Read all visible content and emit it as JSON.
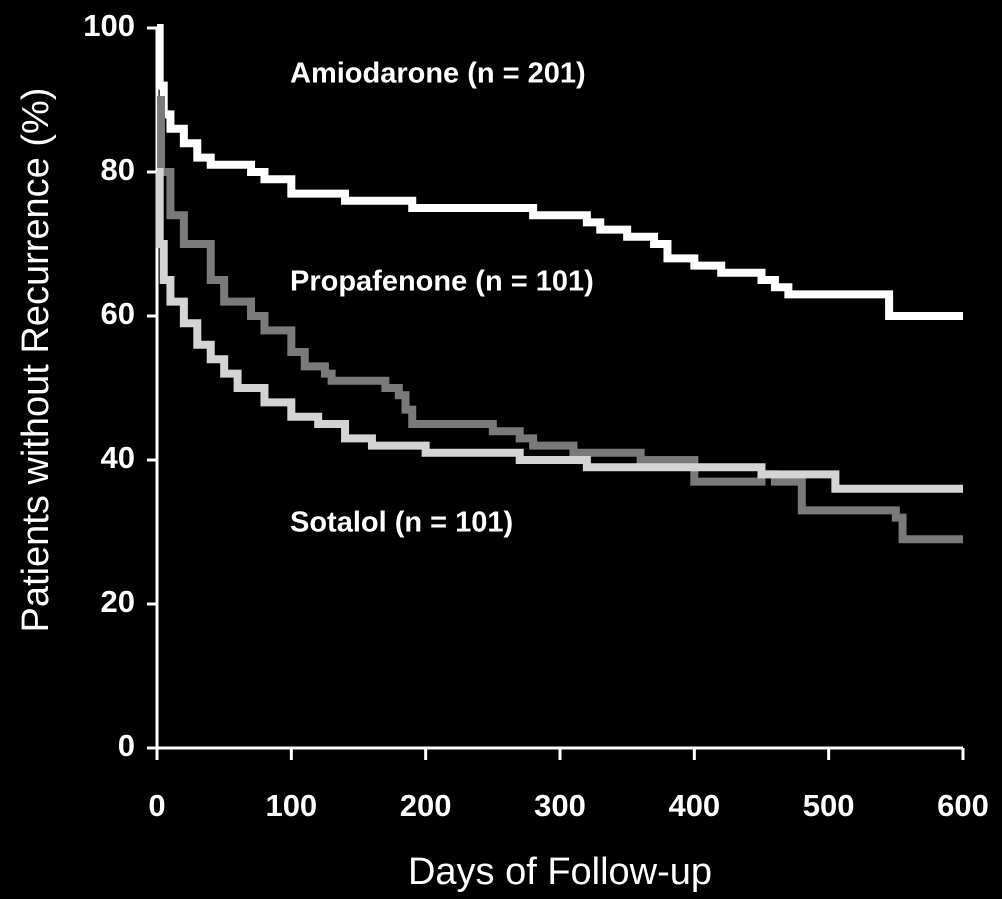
{
  "chart_data": {
    "type": "line",
    "step": true,
    "xlabel": "Days of Follow-up",
    "ylabel": "Patients without Recurrence (%)",
    "xlim": [
      0,
      600
    ],
    "xticks": [
      0,
      100,
      200,
      300,
      400,
      500,
      600
    ],
    "ylim": [
      0,
      100
    ],
    "yticks": [
      0,
      20,
      40,
      60,
      80,
      100
    ],
    "series": [
      {
        "name": "Amiodarone (n = 201)",
        "color": "#ffffff",
        "x": [
          0,
          2,
          5,
          10,
          20,
          30,
          40,
          60,
          70,
          80,
          100,
          130,
          140,
          190,
          270,
          280,
          310,
          320,
          330,
          350,
          370,
          380,
          400,
          420,
          450,
          460,
          470,
          545,
          600
        ],
        "values": [
          100,
          92,
          88,
          86,
          84,
          82,
          81,
          81,
          80,
          79,
          77,
          77,
          76,
          75,
          75,
          74,
          74,
          73,
          72,
          71,
          70,
          68,
          67,
          66,
          65,
          64,
          63,
          60,
          60
        ]
      },
      {
        "name": "Propafenone (n = 101)",
        "color": "#7a7a7a",
        "x": [
          0,
          3,
          10,
          20,
          40,
          50,
          70,
          80,
          100,
          110,
          125,
          130,
          170,
          180,
          185,
          190,
          250,
          270,
          280,
          310,
          360,
          400,
          450,
          460,
          480,
          550,
          555,
          600
        ],
        "values": [
          90,
          80,
          74,
          70,
          65,
          62,
          60,
          58,
          55,
          53,
          52,
          51,
          50,
          49,
          47,
          45,
          44,
          43,
          42,
          41,
          40,
          37,
          38,
          37,
          33,
          32,
          29,
          29
        ]
      },
      {
        "name": "Sotalol (n = 101)",
        "color": "#d4d4d4",
        "x": [
          0,
          2,
          5,
          10,
          20,
          30,
          40,
          50,
          60,
          80,
          100,
          120,
          140,
          160,
          200,
          270,
          320,
          360,
          450,
          505,
          600
        ],
        "values": [
          80,
          70,
          65,
          62,
          59,
          56,
          54,
          52,
          50,
          48,
          46,
          45,
          43,
          42,
          41,
          40,
          39,
          39,
          38,
          36,
          36
        ]
      }
    ]
  }
}
